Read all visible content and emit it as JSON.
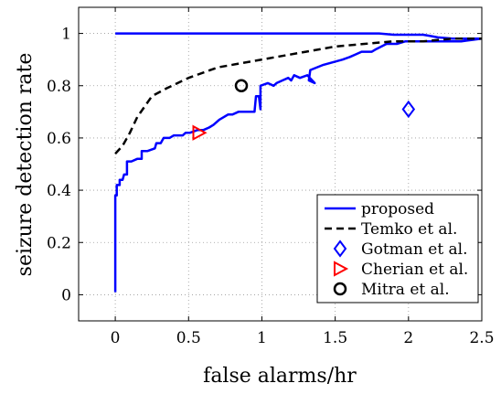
{
  "chart_data": {
    "type": "line",
    "title": "",
    "xlabel": "false alarms/hr",
    "ylabel": "seizure detection rate",
    "xlim": [
      -0.25,
      2.5
    ],
    "ylim": [
      -0.1,
      1.1
    ],
    "xticks": [
      "0",
      "0.5",
      "1",
      "1.5",
      "2",
      "2.5"
    ],
    "yticks": [
      "0",
      "0.2",
      "0.4",
      "0.6",
      "0.8",
      "1"
    ],
    "xtick_values": [
      0,
      0.5,
      1,
      1.5,
      2,
      2.5
    ],
    "ytick_values": [
      0,
      0.2,
      0.4,
      0.6,
      0.8,
      1
    ],
    "grid": true,
    "legend_position": "bottom-right",
    "series": [
      {
        "name": "proposed",
        "kind": "line",
        "style": "solid",
        "color": "#0000ff",
        "x": [
          0,
          0,
          0.01,
          0.01,
          0.03,
          0.03,
          0.05,
          0.06,
          0.08,
          0.08,
          0.11,
          0.15,
          0.18,
          0.18,
          0.22,
          0.27,
          0.28,
          0.31,
          0.33,
          0.37,
          0.4,
          0.46,
          0.48,
          0.51,
          0.56,
          0.6,
          0.64,
          0.67,
          0.71,
          0.74,
          0.77,
          0.8,
          0.84,
          0.86,
          0.91,
          0.95,
          0.96,
          0.98,
          0.99,
          0.99,
          1.04,
          1.08,
          1.1,
          1.14,
          1.18,
          1.2,
          1.22,
          1.26,
          1.31,
          1.36,
          1.32,
          1.33,
          1.42,
          1.55,
          1.6,
          1.64,
          1.68,
          1.75,
          1.78,
          1.85,
          1.92,
          1.98,
          2.05,
          2.15,
          2.27,
          2.36,
          2.5
        ],
        "y": [
          0.01,
          0.38,
          0.38,
          0.42,
          0.42,
          0.44,
          0.44,
          0.46,
          0.46,
          0.51,
          0.51,
          0.52,
          0.52,
          0.55,
          0.55,
          0.56,
          0.58,
          0.58,
          0.6,
          0.6,
          0.61,
          0.61,
          0.62,
          0.62,
          0.63,
          0.63,
          0.64,
          0.65,
          0.67,
          0.68,
          0.69,
          0.69,
          0.7,
          0.7,
          0.7,
          0.7,
          0.76,
          0.76,
          0.71,
          0.8,
          0.81,
          0.8,
          0.81,
          0.82,
          0.83,
          0.82,
          0.84,
          0.83,
          0.84,
          0.81,
          0.82,
          0.86,
          0.88,
          0.9,
          0.91,
          0.92,
          0.93,
          0.93,
          0.94,
          0.96,
          0.96,
          0.97,
          0.97,
          0.97,
          0.97,
          0.97,
          0.98
        ]
      },
      {
        "name": "proposed",
        "kind": "line",
        "style": "solid",
        "color": "#0000ff",
        "legend": false,
        "x": [
          0,
          0.3,
          0.6,
          1.0,
          1.4,
          1.7,
          1.8,
          1.9,
          2.0,
          2.05,
          2.1,
          2.15,
          2.2,
          2.3,
          2.4,
          2.5
        ],
        "y": [
          1.0,
          1.0,
          1.0,
          1.0,
          1.0,
          1.0,
          1.0,
          0.995,
          0.995,
          0.995,
          0.995,
          0.99,
          0.985,
          0.98,
          0.98,
          0.98
        ]
      },
      {
        "name": "Temko et al.",
        "kind": "line",
        "style": "dashed",
        "color": "#000000",
        "x": [
          0,
          0.05,
          0.1,
          0.15,
          0.25,
          0.35,
          0.5,
          0.7,
          0.9,
          1.1,
          1.3,
          1.5,
          1.7,
          1.9,
          2.1,
          2.3,
          2.5
        ],
        "y": [
          0.54,
          0.57,
          0.62,
          0.68,
          0.76,
          0.79,
          0.83,
          0.87,
          0.89,
          0.91,
          0.93,
          0.95,
          0.96,
          0.97,
          0.97,
          0.98,
          0.98
        ]
      },
      {
        "name": "Gotman et al.",
        "kind": "marker",
        "marker": "diamond",
        "color": "#0000ff",
        "x": [
          2.0
        ],
        "y": [
          0.71
        ]
      },
      {
        "name": "Cherian et al.",
        "kind": "marker",
        "marker": "triangle-right",
        "color": "#ff0000",
        "x": [
          0.57
        ],
        "y": [
          0.62
        ]
      },
      {
        "name": "Mitra et al.",
        "kind": "marker",
        "marker": "circle",
        "color": "#000000",
        "x": [
          0.86
        ],
        "y": [
          0.8
        ]
      }
    ]
  }
}
